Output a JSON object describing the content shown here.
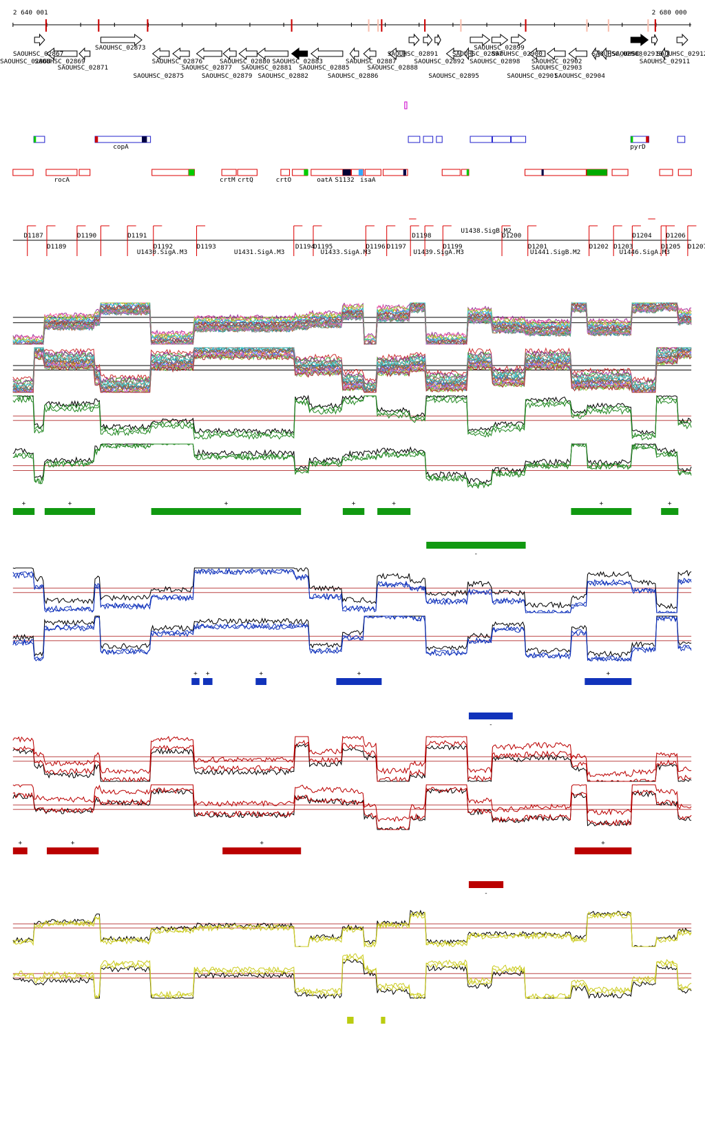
{
  "ruler": {
    "start": "2 640 001",
    "end": "2 680 000"
  },
  "genes": [
    "SAOUHSC_02867",
    "SAOUHSC_02868",
    "SAOUHSC_02869",
    "SAOUHSC_02871",
    "SAOUHSC_02873",
    "SAOUHSC_02875",
    "SAOUHSC_02876",
    "SAOUHSC_02877",
    "SAOUHSC_02879",
    "SAOUHSC_02880",
    "SAOUHSC_02881",
    "SAOUHSC_02882",
    "SAOUHSC_02883",
    "SAOUHSC_02885",
    "SAOUHSC_02886",
    "SAOUHSC_02887",
    "SAOUHSC_02888",
    "SAOUHSC_02891",
    "SAOUHSC_02892",
    "SAOUHSC_02895",
    "SAOUHSC_02897",
    "SAOUHSC_02898",
    "SAOUHSC_02899",
    "SAOUHSC_02900",
    "SAOUHSC_02901",
    "SAOUHSC_02902",
    "SAOUHSC_02903",
    "SAOUHSC_02904",
    "SAOUHSC_02908",
    "SAOUHSC_02910",
    "SAOUHSC_02911",
    "SAOUHSC_02912"
  ],
  "features_top": [
    "copA",
    "pyrD"
  ],
  "features_bottom": [
    "rocA",
    "crtM",
    "crtQ",
    "crtO",
    "oatA",
    "S1132",
    "isaA"
  ],
  "regions": [
    "D1187",
    "D1189",
    "D1190",
    "D1191",
    "D1192",
    "D1193",
    "D1194",
    "D1195",
    "D1196",
    "D1197",
    "D1198",
    "D1199",
    "D1200",
    "D1201",
    "D1202",
    "D1203",
    "D1204",
    "D1205",
    "D1206",
    "D1207"
  ],
  "promoters": [
    "U1430.SigA.M3",
    "U1431.SigA.M3",
    "U1433.SigA.M3",
    "U1439.SigA.M3",
    "U1438.SigB.M2",
    "U1441.SigB.M2",
    "U1446.SigA.M3"
  ],
  "strand_signs": {
    "plus": "+",
    "minus": "-"
  }
}
